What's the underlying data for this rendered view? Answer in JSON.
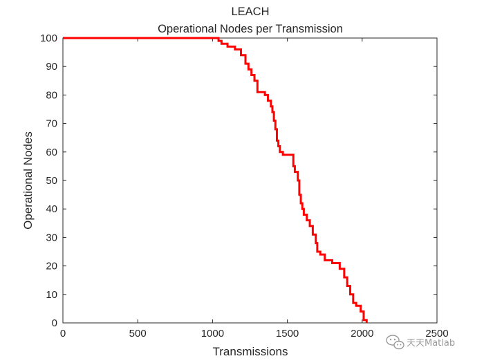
{
  "chart_data": {
    "type": "line",
    "title": "LEACH",
    "subtitle": "Operational Nodes per Transmission",
    "xlabel": "Transmissions",
    "ylabel": "Operational Nodes",
    "xlim": [
      0,
      2500
    ],
    "ylim": [
      0,
      100
    ],
    "xticks": [
      0,
      500,
      1000,
      1500,
      2000,
      2500
    ],
    "yticks": [
      0,
      10,
      20,
      30,
      40,
      50,
      60,
      70,
      80,
      90,
      100
    ],
    "grid": false,
    "series": [
      {
        "color": "#ff0000",
        "step": true,
        "x": [
          0,
          1040,
          1060,
          1100,
          1150,
          1190,
          1220,
          1240,
          1260,
          1280,
          1300,
          1320,
          1350,
          1370,
          1390,
          1400,
          1410,
          1420,
          1430,
          1440,
          1450,
          1470,
          1500,
          1540,
          1550,
          1570,
          1580,
          1590,
          1600,
          1610,
          1630,
          1650,
          1670,
          1690,
          1700,
          1720,
          1750,
          1800,
          1850,
          1880,
          1900,
          1920,
          1940,
          1960,
          1990,
          2010,
          2030
        ],
        "y": [
          100,
          99,
          98,
          97,
          96,
          94,
          91,
          89,
          87,
          85,
          81,
          81,
          80,
          78,
          76,
          74,
          71,
          68,
          64,
          62,
          60,
          59,
          59,
          55,
          53,
          50,
          45,
          42,
          40,
          38,
          36,
          34,
          31,
          28,
          25,
          24,
          22,
          21,
          19,
          16,
          13,
          10,
          7,
          6,
          4,
          1,
          0
        ]
      }
    ]
  },
  "watermark": {
    "text": "天天Matlab",
    "icon": "wechat-bubbles-icon"
  }
}
